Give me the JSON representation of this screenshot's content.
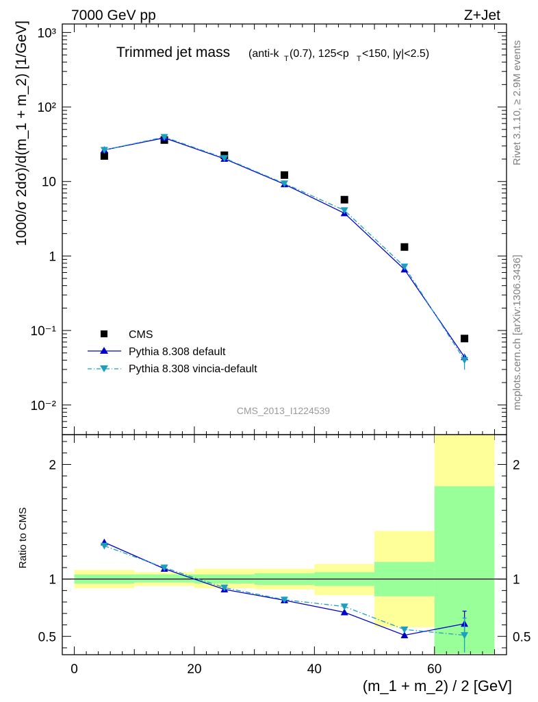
{
  "header": {
    "left": "7000 GeV pp",
    "right": "Z+Jet"
  },
  "side_labels": {
    "version": "Rivet 3.1.10, ≥ 2.9M events",
    "source": "mcplots.cern.ch [arXiv:1306.3436]"
  },
  "watermark": "CMS_2013_I1224539",
  "title": {
    "main": "Trimmed jet mass",
    "cut_prefix": "(anti-k",
    "cut_sub_t": "T",
    "cut_mid": "(0.7), 125<p",
    "cut_end": "<150, |y|<2.5)"
  },
  "legend": {
    "cms": "CMS",
    "default": "Pythia 8.308 default",
    "vincia": "Pythia 8.308 vincia-default"
  },
  "colors": {
    "cms": "#000000",
    "default": "#0000cc",
    "vincia": "#1a9fbf",
    "band_inner": "#99ff99",
    "band_outer": "#ffff99"
  },
  "chart_data": [
    {
      "type": "scatter",
      "xlabel": "",
      "ylabel": "1000/σ 2dσ)/d(m_1 + m_2) [1/GeV]",
      "yscale": "log",
      "ylim": [
        0.004,
        1300
      ],
      "xlim": [
        -2,
        72
      ],
      "y_ticks": [
        "10⁻²",
        "10⁻¹",
        "1",
        "10",
        "10²",
        "10³"
      ],
      "series": [
        {
          "name": "CMS",
          "x": [
            5,
            15,
            25,
            35,
            45,
            55,
            65
          ],
          "values": [
            22,
            36,
            22.5,
            12.2,
            5.7,
            1.32,
            0.078
          ]
        },
        {
          "name": "Pythia 8.308 default",
          "x": [
            5,
            15,
            25,
            35,
            45,
            55,
            65
          ],
          "values": [
            26.5,
            38.5,
            20.2,
            9.2,
            3.75,
            0.66,
            0.044
          ]
        },
        {
          "name": "Pythia 8.308 vincia-default",
          "x": [
            5,
            15,
            25,
            35,
            45,
            55,
            65
          ],
          "values": [
            26.5,
            39.5,
            20.6,
            9.4,
            4.1,
            0.72,
            0.04
          ]
        }
      ]
    },
    {
      "type": "line",
      "xlabel": "(m_1 + m_2) / 2 [GeV]",
      "ylabel": "Ratio to CMS",
      "ylim": [
        0.34,
        2.26
      ],
      "xlim": [
        -2,
        72
      ],
      "x_ticks": [
        "0",
        "20",
        "40",
        "60"
      ],
      "y_ticks": [
        "0.5",
        "1",
        "2"
      ],
      "bins": [
        [
          0,
          10
        ],
        [
          10,
          20
        ],
        [
          20,
          30
        ],
        [
          30,
          40
        ],
        [
          40,
          50
        ],
        [
          50,
          60
        ],
        [
          60,
          70
        ]
      ],
      "band_inner": [
        [
          0.96,
          1.04
        ],
        [
          0.97,
          1.04
        ],
        [
          0.96,
          1.04
        ],
        [
          0.95,
          1.05
        ],
        [
          0.94,
          1.06
        ],
        [
          0.85,
          1.15
        ],
        [
          0.35,
          1.81
        ]
      ],
      "band_outer": [
        [
          0.92,
          1.08
        ],
        [
          0.94,
          1.06
        ],
        [
          0.92,
          1.09
        ],
        [
          0.91,
          1.09
        ],
        [
          0.86,
          1.13
        ],
        [
          0.58,
          1.42
        ],
        [
          0.35,
          2.27
        ]
      ],
      "series": [
        {
          "name": "Pythia 8.308 default",
          "x": [
            5,
            15,
            25,
            35,
            45,
            55,
            65
          ],
          "values": [
            1.32,
            1.09,
            0.91,
            0.815,
            0.71,
            0.51,
            0.61
          ],
          "err": [
            0.02,
            0.02,
            0.01,
            0.01,
            0.015,
            0.02,
            0.11
          ]
        },
        {
          "name": "Pythia 8.308 vincia-default",
          "x": [
            5,
            15,
            25,
            35,
            45,
            55,
            65
          ],
          "values": [
            1.29,
            1.1,
            0.925,
            0.82,
            0.76,
            0.56,
            0.51
          ],
          "err": [
            0.02,
            0.02,
            0.01,
            0.01,
            0.015,
            0.02,
            0.15
          ]
        }
      ]
    }
  ]
}
